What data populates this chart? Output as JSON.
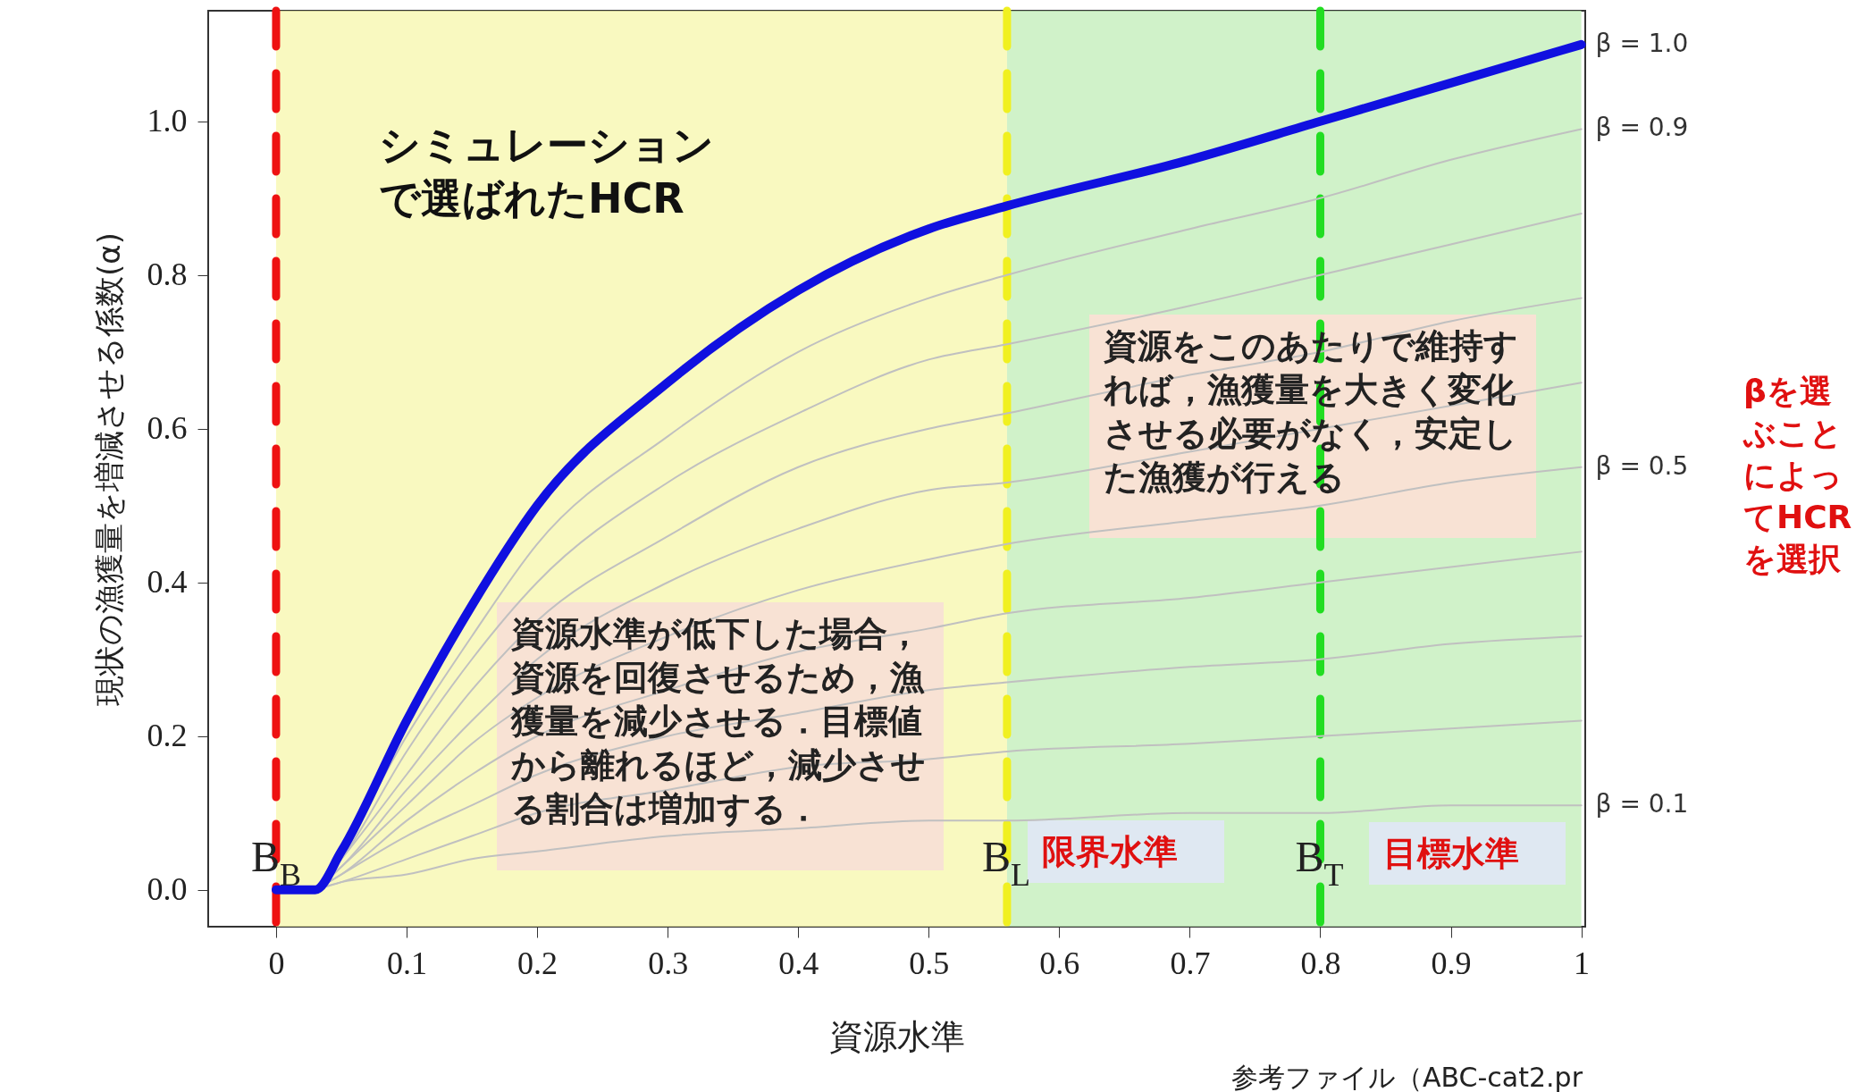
{
  "chart_data": {
    "type": "line",
    "xlabel": "資源水準",
    "ylabel": "現状の漁獲量を増減させる係数(α)",
    "x": [
      0,
      0.03,
      0.05,
      0.1,
      0.15,
      0.2,
      0.3,
      0.4,
      0.5,
      0.56,
      0.7,
      0.8,
      0.9,
      1.0
    ],
    "series": [
      {
        "name": "β = 0.1",
        "color": "#c0c0c0",
        "values": [
          null,
          0,
          0.01,
          0.02,
          0.04,
          0.05,
          0.07,
          0.08,
          0.09,
          0.09,
          0.1,
          0.1,
          0.11,
          0.11
        ]
      },
      {
        "color": "#c0c0c0",
        "values": [
          null,
          0,
          0.01,
          0.04,
          0.07,
          0.1,
          0.13,
          0.16,
          0.17,
          0.18,
          0.19,
          0.2,
          0.21,
          0.22
        ]
      },
      {
        "color": "#c0c0c0",
        "values": [
          null,
          0,
          0.02,
          0.07,
          0.11,
          0.15,
          0.2,
          0.23,
          0.26,
          0.27,
          0.29,
          0.3,
          0.32,
          0.33
        ]
      },
      {
        "color": "#c0c0c0",
        "values": [
          null,
          0,
          0.02,
          0.09,
          0.15,
          0.2,
          0.26,
          0.31,
          0.34,
          0.36,
          0.38,
          0.4,
          0.42,
          0.44
        ]
      },
      {
        "name": "β = 0.5",
        "color": "#c0c0c0",
        "values": [
          null,
          0,
          0.03,
          0.11,
          0.19,
          0.25,
          0.33,
          0.39,
          0.43,
          0.45,
          0.48,
          0.5,
          0.53,
          0.55
        ]
      },
      {
        "color": "#c0c0c0",
        "values": [
          null,
          0,
          0.03,
          0.13,
          0.22,
          0.3,
          0.4,
          0.47,
          0.52,
          0.53,
          0.57,
          0.6,
          0.63,
          0.66
        ]
      },
      {
        "color": "#c0c0c0",
        "values": [
          null,
          0,
          0.04,
          0.15,
          0.26,
          0.35,
          0.46,
          0.55,
          0.6,
          0.62,
          0.67,
          0.7,
          0.74,
          0.77
        ]
      },
      {
        "color": "#c0c0c0",
        "values": [
          null,
          0,
          0.04,
          0.18,
          0.3,
          0.4,
          0.53,
          0.62,
          0.69,
          0.71,
          0.76,
          0.8,
          0.84,
          0.88
        ]
      },
      {
        "name": "β = 0.9",
        "color": "#c0c0c0",
        "values": [
          null,
          0,
          0.05,
          0.2,
          0.33,
          0.45,
          0.59,
          0.7,
          0.77,
          0.8,
          0.86,
          0.9,
          0.95,
          0.99
        ]
      },
      {
        "name": "β = 1.0",
        "color": "#1010e0",
        "values": [
          0,
          0,
          0.05,
          0.22,
          0.37,
          0.5,
          0.66,
          0.78,
          0.86,
          0.89,
          0.95,
          1.0,
          1.05,
          1.1
        ]
      }
    ],
    "xlim": [
      -0.052,
      1.003
    ],
    "ylim": [
      -0.048,
      1.144
    ],
    "xticks": [
      0,
      0.1,
      0.2,
      0.3,
      0.4,
      0.5,
      0.6,
      0.7,
      0.8,
      0.9,
      1
    ],
    "yticks": [
      {
        "value": 0,
        "label": "0.0"
      },
      {
        "value": 0.2,
        "label": "0.2"
      },
      {
        "value": 0.4,
        "label": "0.4"
      },
      {
        "value": 0.6,
        "label": "0.6"
      },
      {
        "value": 0.8,
        "label": "0.8"
      },
      {
        "value": 1,
        "label": "1.0"
      }
    ],
    "ref_lines": [
      {
        "axis": "x",
        "value": 0,
        "label": "B$_{B}$",
        "color": "#ee1111",
        "line_style": "dashed"
      },
      {
        "axis": "x",
        "value": 0.56,
        "label": "B$_{L}$",
        "color": "#f0f020",
        "line_style": "dashed"
      },
      {
        "axis": "x",
        "value": 0.8,
        "label": "B$_{T}$",
        "color": "#22dd22",
        "line_style": "dashed"
      }
    ],
    "bands": [
      {
        "axis": "x",
        "from": 0,
        "to": 0.56,
        "color": "#f7f7b0"
      },
      {
        "axis": "x",
        "from": 0.56,
        "to": 1,
        "color": "#c4efbc"
      }
    ],
    "annotations": [
      "シミュレーションで選ばれたHCR",
      "資源水準が低下した場合，資源を回復させるため，漁獲量を減少させる．目標値から離れるほど，減少させる割合は増加する．",
      "資源をこのあたりで維持すれば，漁獲量を大きく変化させる必要がなく，安定した漁獲が行える",
      "限界水準",
      "目標水準",
      "βを選ぶことによってHCRを選択",
      "参考ファイル（ABC-cat2.pr"
    ]
  }
}
